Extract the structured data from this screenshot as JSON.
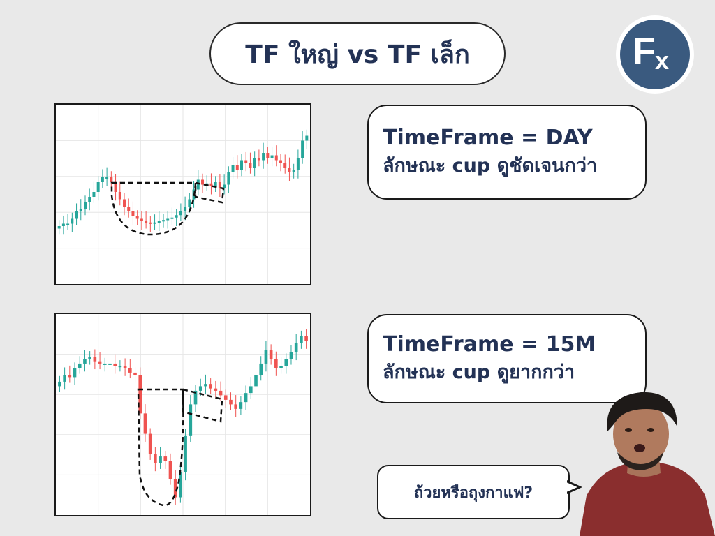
{
  "header": {
    "title": "TF ใหญ่ vs TF เล็ก"
  },
  "logo": {
    "letter_main": "F",
    "letter_sub": "x",
    "brand_color": "#3a5a7f"
  },
  "panel_day": {
    "line1": "TimeFrame = DAY",
    "line2": "ลักษณะ cup ดูชัดเจนกว่า"
  },
  "panel_15m": {
    "line1": "TimeFrame = 15M",
    "line2": "ลักษณะ cup ดูยากกว่า"
  },
  "speech_bubble": {
    "text": "ถ้วยหรือถุงกาแฟ?"
  },
  "colors": {
    "bull": "#26a69a",
    "bear": "#ef5350",
    "text": "#233255",
    "background": "#e9e9e9"
  },
  "chart_data": [
    {
      "type": "candlestick",
      "title": "",
      "pattern": "cup-and-handle",
      "grid": true,
      "close": [
        3.2,
        3.3,
        3.3,
        3.5,
        3.8,
        3.9,
        4.2,
        4.4,
        4.6,
        5.0,
        5.2,
        5.2,
        5.0,
        4.6,
        4.3,
        4.0,
        3.8,
        3.6,
        3.5,
        3.4,
        3.35,
        3.3,
        3.35,
        3.4,
        3.45,
        3.5,
        3.55,
        3.65,
        3.8,
        4.0,
        4.3,
        4.7,
        5.1,
        4.9,
        4.95,
        4.85,
        5.0,
        4.75,
        4.9,
        5.4,
        5.7,
        5.5,
        5.9,
        5.8,
        5.6,
        6.0,
        5.9,
        6.2,
        6.0,
        6.1,
        5.9,
        5.8,
        5.6,
        5.4,
        5.5,
        6.0,
        6.7,
        6.9
      ],
      "open": [
        3.1,
        3.2,
        3.3,
        3.3,
        3.5,
        3.8,
        3.9,
        4.2,
        4.4,
        4.6,
        5.0,
        5.2,
        5.2,
        5.0,
        4.6,
        4.3,
        4.0,
        3.8,
        3.6,
        3.5,
        3.4,
        3.35,
        3.3,
        3.35,
        3.4,
        3.45,
        3.5,
        3.55,
        3.65,
        3.8,
        4.0,
        4.3,
        4.7,
        5.1,
        4.9,
        4.95,
        4.85,
        5.0,
        4.75,
        4.9,
        5.4,
        5.7,
        5.5,
        5.9,
        5.8,
        5.6,
        6.0,
        5.9,
        6.2,
        6.0,
        6.1,
        5.9,
        5.8,
        5.6,
        5.4,
        5.5,
        6.0,
        6.7
      ],
      "ylim": [
        1,
        8
      ]
    },
    {
      "type": "candlestick",
      "title": "",
      "pattern": "cup-and-handle",
      "grid": true,
      "close": [
        6.2,
        6.5,
        6.4,
        6.8,
        7.0,
        7.2,
        7.3,
        7.1,
        7.0,
        7.0,
        7.0,
        6.9,
        6.9,
        6.8,
        6.6,
        6.5,
        4.8,
        3.9,
        3.0,
        2.6,
        2.9,
        2.7,
        1.9,
        1.1,
        2.2,
        3.8,
        5.2,
        5.8,
        6.0,
        6.1,
        5.9,
        5.8,
        5.6,
        5.4,
        5.2,
        5.0,
        5.3,
        5.7,
        6.0,
        6.5,
        7.0,
        7.6,
        7.2,
        6.8,
        6.9,
        7.2,
        7.5,
        7.9,
        8.2,
        8.0
      ],
      "open": [
        6.0,
        6.2,
        6.5,
        6.4,
        6.8,
        7.0,
        7.2,
        7.3,
        7.1,
        7.0,
        7.0,
        7.0,
        6.9,
        6.9,
        6.8,
        6.6,
        6.5,
        4.8,
        3.9,
        3.0,
        2.6,
        2.9,
        2.7,
        1.9,
        1.1,
        2.2,
        3.8,
        5.2,
        5.8,
        6.0,
        6.1,
        5.9,
        5.8,
        5.6,
        5.4,
        5.2,
        5.0,
        5.3,
        5.7,
        6.0,
        6.5,
        7.0,
        7.6,
        7.2,
        6.8,
        6.9,
        7.2,
        7.5,
        7.9,
        8.2
      ],
      "ylim": [
        0.5,
        9
      ]
    }
  ]
}
